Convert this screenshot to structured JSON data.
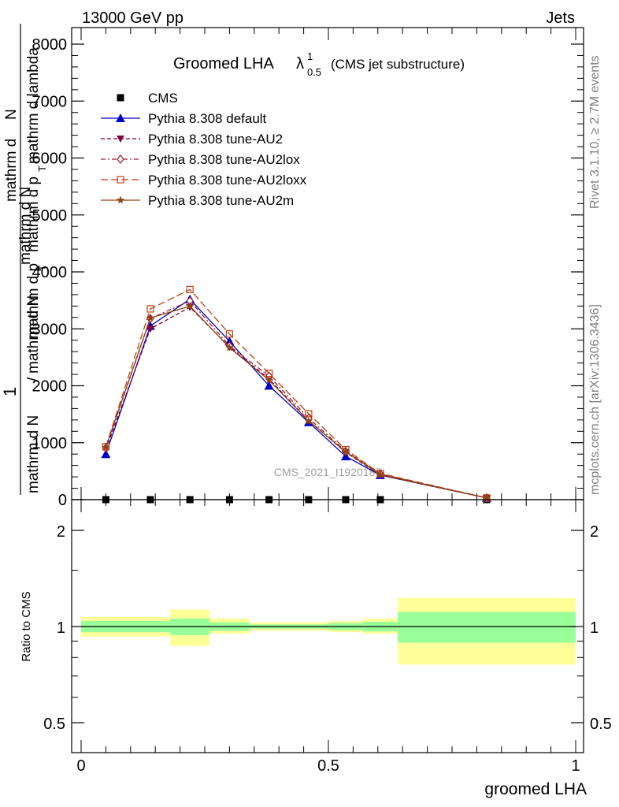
{
  "header": {
    "left": "13000 GeV pp",
    "right": "Jets"
  },
  "side_text": {
    "rivet": "Rivet 3.1.10, ≥ 2.7M events",
    "mcplots": "mcplots.cern.ch [arXiv:1306.3436]"
  },
  "watermark": "CMS_2021_I1920187",
  "colors": {
    "cms": "#000000",
    "default": "#0000cc",
    "au2": "#800040",
    "au2lox": "#a01830",
    "au2loxx": "#c04010",
    "au2m": "#8b4513",
    "band_inner": "#99ff99",
    "band_outer": "#ffff99"
  },
  "chart_data": [
    {
      "type": "line",
      "title_main": "Groomed LHA",
      "title_lambda": "λ",
      "title_sub": "0.5",
      "title_sup": "1",
      "title_note": "(CMS jet substructure)",
      "ylabel_parts": [
        "1",
        "mathrm d N",
        "/",
        "mathrm d N",
        "mathrm d p",
        "T",
        "mathrm d N",
        "mathrm d p",
        "T",
        "mathrm d lambda"
      ],
      "ylabel_top": "mathrm d",
      "ylabel_top2": "N",
      "ylim": [
        0,
        8300
      ],
      "yticks": [
        0,
        1000,
        2000,
        3000,
        4000,
        5000,
        6000,
        7000,
        8000
      ],
      "ytick_labels": [
        "0",
        "1000",
        "2000",
        "3000",
        "4000",
        "5000",
        "6000",
        "7000",
        "8000"
      ],
      "xlim": [
        -0.02,
        1.02
      ],
      "legend_position": "top-left",
      "x": [
        0.05,
        0.14,
        0.22,
        0.3,
        0.38,
        0.46,
        0.535,
        0.605,
        0.82
      ],
      "series": [
        {
          "name": "CMS",
          "key": "cms",
          "style": "square",
          "values": [
            0,
            0,
            0,
            0,
            0,
            0,
            0,
            0,
            0
          ]
        },
        {
          "name": "Pythia 8.308 default",
          "key": "default",
          "style": "solid",
          "marker": "triangle",
          "values": [
            800,
            3050,
            3520,
            2780,
            2000,
            1360,
            760,
            430,
            30
          ]
        },
        {
          "name": "Pythia 8.308 tune-AU2",
          "key": "au2",
          "style": "dash",
          "marker": "triangle-down",
          "values": [
            880,
            3000,
            3380,
            2680,
            2120,
            1390,
            830,
            430,
            30
          ]
        },
        {
          "name": "Pythia 8.308 tune-AU2lox",
          "key": "au2lox",
          "style": "dashdot",
          "marker": "diamond",
          "values": [
            910,
            3180,
            3490,
            2700,
            2170,
            1430,
            850,
            450,
            30
          ]
        },
        {
          "name": "Pythia 8.308 tune-AU2loxx",
          "key": "au2loxx",
          "style": "longdash",
          "marker": "open-square",
          "values": [
            930,
            3350,
            3690,
            2910,
            2220,
            1510,
            880,
            460,
            30
          ]
        },
        {
          "name": "Pythia 8.308 tune-AU2m",
          "key": "au2m",
          "style": "solid",
          "marker": "star",
          "values": [
            920,
            3190,
            3400,
            2670,
            2100,
            1380,
            840,
            440,
            30
          ]
        }
      ]
    },
    {
      "type": "area",
      "ylabel": "Ratio to CMS",
      "xlabel": "groomed LHA",
      "ylim": [
        0.36,
        2.5
      ],
      "yticks": [
        0.5,
        1,
        2
      ],
      "ytick_labels": [
        "0.5",
        "1",
        "2"
      ],
      "xticks": [
        0,
        0.5,
        1
      ],
      "xtick_labels": [
        "0",
        "0.5",
        "1"
      ],
      "reference_line": 1,
      "bins": [
        {
          "x0": 0.0,
          "x1": 0.18,
          "inner": [
            0.96,
            1.04
          ],
          "outer": [
            0.93,
            1.07
          ]
        },
        {
          "x0": 0.18,
          "x1": 0.26,
          "inner": [
            0.94,
            1.06
          ],
          "outer": [
            0.87,
            1.13
          ]
        },
        {
          "x0": 0.26,
          "x1": 0.34,
          "inner": [
            0.97,
            1.03
          ],
          "outer": [
            0.95,
            1.06
          ]
        },
        {
          "x0": 0.34,
          "x1": 0.5,
          "inner": [
            0.985,
            1.015
          ],
          "outer": [
            0.97,
            1.03
          ]
        },
        {
          "x0": 0.5,
          "x1": 0.57,
          "inner": [
            0.975,
            1.025
          ],
          "outer": [
            0.96,
            1.04
          ]
        },
        {
          "x0": 0.57,
          "x1": 0.64,
          "inner": [
            0.965,
            1.035
          ],
          "outer": [
            0.95,
            1.06
          ]
        },
        {
          "x0": 0.64,
          "x1": 1.0,
          "inner": [
            0.89,
            1.11
          ],
          "outer": [
            0.76,
            1.23
          ]
        }
      ]
    }
  ]
}
